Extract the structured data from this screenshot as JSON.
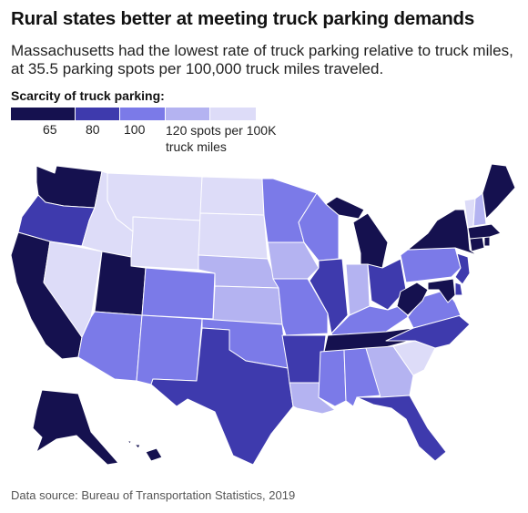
{
  "title": "Rural states better at meeting truck parking demands",
  "subtitle": "Massachusetts had the lowest rate of truck parking relative to truck miles, at 35.5 parking spots per 100,000 truck miles traveled.",
  "legend": {
    "title": "Scarcity of truck parking:",
    "bins": [
      {
        "color": "#15114f",
        "label": "65"
      },
      {
        "color": "#3e3aad",
        "label": "80"
      },
      {
        "color": "#7b7ae8",
        "label": "100"
      },
      {
        "color": "#b4b3f1",
        "label": ""
      },
      {
        "color": "#dddcf8",
        "label": "120 spots per 100K truck miles"
      }
    ]
  },
  "states": [
    {
      "id": "WA",
      "color": "#15114f"
    },
    {
      "id": "OR",
      "color": "#3e3aad"
    },
    {
      "id": "CA",
      "color": "#15114f"
    },
    {
      "id": "NV",
      "color": "#dddcf8"
    },
    {
      "id": "ID",
      "color": "#dddcf8"
    },
    {
      "id": "MT",
      "color": "#dddcf8"
    },
    {
      "id": "WY",
      "color": "#dddcf8"
    },
    {
      "id": "UT",
      "color": "#15114f"
    },
    {
      "id": "AZ",
      "color": "#7b7ae8"
    },
    {
      "id": "CO",
      "color": "#7b7ae8"
    },
    {
      "id": "NM",
      "color": "#7b7ae8"
    },
    {
      "id": "ND",
      "color": "#dddcf8"
    },
    {
      "id": "SD",
      "color": "#dddcf8"
    },
    {
      "id": "NE",
      "color": "#b4b3f1"
    },
    {
      "id": "KS",
      "color": "#b4b3f1"
    },
    {
      "id": "OK",
      "color": "#7b7ae8"
    },
    {
      "id": "TX",
      "color": "#3e3aad"
    },
    {
      "id": "MN",
      "color": "#7b7ae8"
    },
    {
      "id": "IA",
      "color": "#b4b3f1"
    },
    {
      "id": "MO",
      "color": "#7b7ae8"
    },
    {
      "id": "AR",
      "color": "#3e3aad"
    },
    {
      "id": "LA",
      "color": "#b4b3f1"
    },
    {
      "id": "WI",
      "color": "#7b7ae8"
    },
    {
      "id": "IL",
      "color": "#3e3aad"
    },
    {
      "id": "MI",
      "color": "#15114f"
    },
    {
      "id": "IN",
      "color": "#b4b3f1"
    },
    {
      "id": "OH",
      "color": "#3e3aad"
    },
    {
      "id": "KY",
      "color": "#7b7ae8"
    },
    {
      "id": "TN",
      "color": "#15114f"
    },
    {
      "id": "MS",
      "color": "#7b7ae8"
    },
    {
      "id": "AL",
      "color": "#7b7ae8"
    },
    {
      "id": "GA",
      "color": "#b4b3f1"
    },
    {
      "id": "FL",
      "color": "#3e3aad"
    },
    {
      "id": "SC",
      "color": "#dddcf8"
    },
    {
      "id": "NC",
      "color": "#3e3aad"
    },
    {
      "id": "VA",
      "color": "#7b7ae8"
    },
    {
      "id": "WV",
      "color": "#15114f"
    },
    {
      "id": "PA",
      "color": "#7b7ae8"
    },
    {
      "id": "NY",
      "color": "#15114f"
    },
    {
      "id": "NJ",
      "color": "#3e3aad"
    },
    {
      "id": "DE",
      "color": "#3e3aad"
    },
    {
      "id": "MD",
      "color": "#15114f"
    },
    {
      "id": "CT",
      "color": "#15114f"
    },
    {
      "id": "RI",
      "color": "#15114f"
    },
    {
      "id": "MA",
      "color": "#15114f"
    },
    {
      "id": "VT",
      "color": "#dddcf8"
    },
    {
      "id": "NH",
      "color": "#b4b3f1"
    },
    {
      "id": "ME",
      "color": "#15114f"
    },
    {
      "id": "AK",
      "color": "#15114f"
    },
    {
      "id": "HI",
      "color": "#15114f"
    }
  ],
  "source": "Data source: Bureau of Transportation Statistics, 2019"
}
